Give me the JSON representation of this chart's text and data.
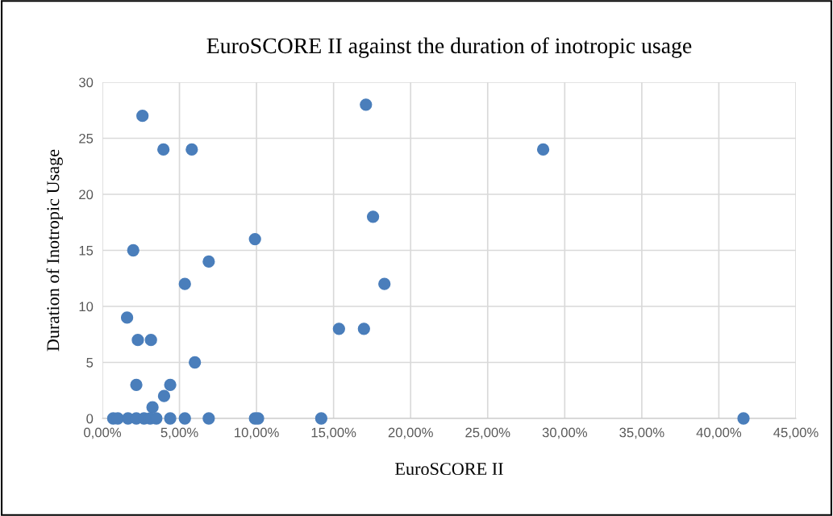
{
  "chart_data": {
    "type": "scatter",
    "title": "EuroSCORE II against the duration of inotropic usage",
    "xlabel": "EuroSCORE II",
    "ylabel": "Duration of Inotropic Usage",
    "x": [
      2.6,
      3.96,
      5.8,
      2.0,
      9.9,
      6.9,
      5.35,
      1.6,
      2.3,
      3.15,
      6.0,
      2.2,
      4.4,
      4.0,
      3.25,
      0.7,
      1.0,
      1.66,
      2.2,
      2.7,
      3.1,
      3.5,
      4.4,
      5.35,
      6.9,
      9.9,
      10.1,
      14.2,
      15.35,
      16.97,
      17.1,
      28.6,
      17.56,
      18.3,
      41.6
    ],
    "values": [
      27,
      24,
      24,
      15,
      16,
      14,
      12,
      9,
      7,
      7,
      5,
      3,
      3,
      2,
      1,
      0,
      0,
      0,
      0,
      0,
      0,
      0,
      0,
      0,
      0,
      0,
      0,
      0,
      8,
      8,
      28,
      24,
      18,
      12,
      0
    ],
    "color": "#4a7ebb",
    "marker": "circle",
    "grid": true,
    "xlim": [
      0,
      45
    ],
    "xticks": [
      {
        "value": 0,
        "label": "0,00%"
      },
      {
        "value": 5,
        "label": "5,00%"
      },
      {
        "value": 10,
        "label": "10,00%"
      },
      {
        "value": 15,
        "label": "15,00%"
      },
      {
        "value": 20,
        "label": "20,00%"
      },
      {
        "value": 25,
        "label": "25,00%"
      },
      {
        "value": 30,
        "label": "30,00%"
      },
      {
        "value": 35,
        "label": "35,00%"
      },
      {
        "value": 40,
        "label": "40,00%"
      },
      {
        "value": 45,
        "label": "45,00%"
      }
    ],
    "ylim": [
      0,
      30
    ],
    "yticks": [
      0,
      5,
      10,
      15,
      20,
      25,
      30
    ]
  }
}
